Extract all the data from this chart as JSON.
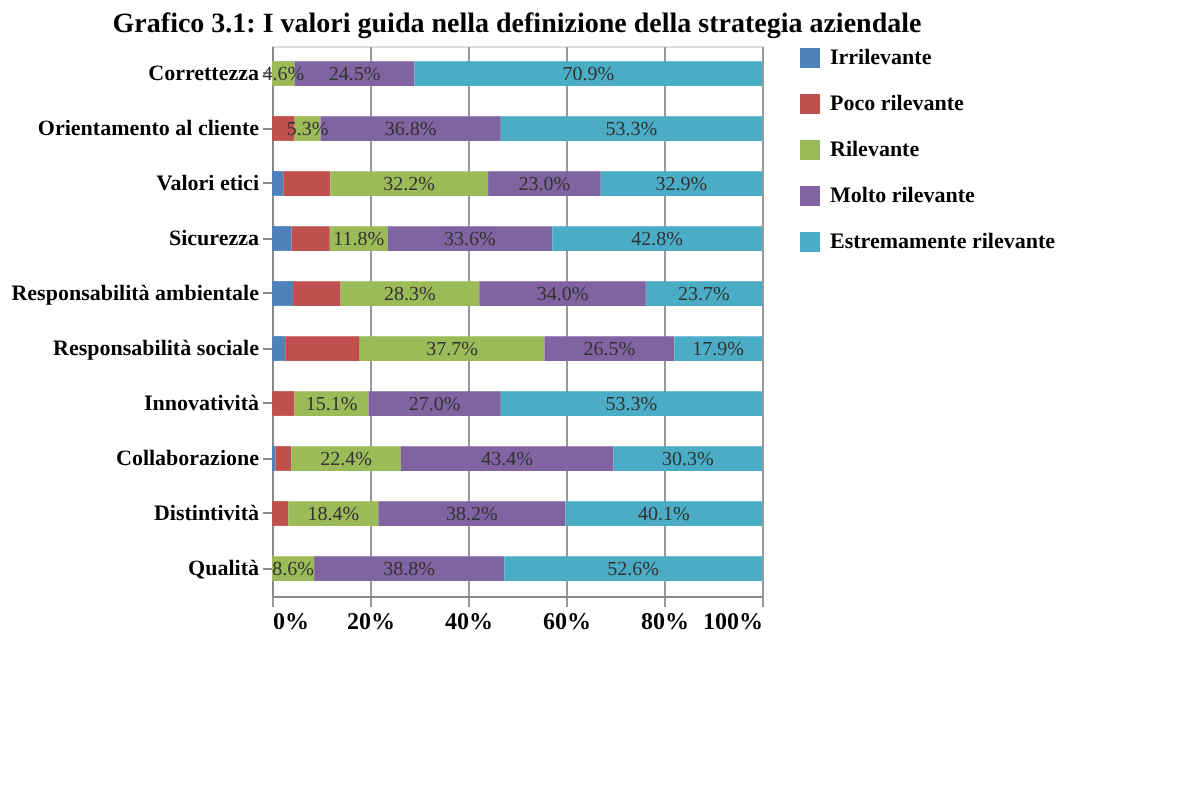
{
  "chart_data": {
    "type": "bar",
    "orientation": "horizontal",
    "stacked": true,
    "title": "Grafico 3.1: I valori guida nella definizione della strategia aziendale",
    "categories": [
      "Correttezza",
      "Orientamento al cliente",
      "Valori etici",
      "Sicurezza",
      "Responsabilità ambientale",
      "Responsabilità sociale",
      "Innovatività",
      "Collaborazione",
      "Distintività",
      "Qualità"
    ],
    "series": [
      {
        "name": "Irrilevante",
        "color": "#4f81bd",
        "values": [
          0,
          0,
          2.3,
          4.0,
          4.3,
          2.7,
          0,
          0.7,
          0,
          0
        ],
        "value_labels": [
          null,
          null,
          null,
          null,
          null,
          null,
          null,
          null,
          null,
          null
        ]
      },
      {
        "name": "Poco rilevante",
        "color": "#c0504d",
        "values": [
          0,
          4.6,
          9.6,
          7.8,
          9.7,
          15.2,
          4.6,
          3.2,
          3.3,
          0
        ],
        "value_labels": [
          null,
          null,
          null,
          null,
          null,
          null,
          null,
          null,
          null,
          null
        ]
      },
      {
        "name": "Rilevante",
        "color": "#9bbb59",
        "values": [
          4.6,
          5.3,
          32.2,
          11.8,
          28.3,
          37.7,
          15.1,
          22.4,
          18.4,
          8.6
        ],
        "value_labels": [
          "4.6%",
          "5.3%",
          "32.2%",
          "11.8%",
          "28.3%",
          "37.7%",
          "15.1%",
          "22.4%",
          "18.4%",
          "8.6%"
        ]
      },
      {
        "name": "Molto rilevante",
        "color": "#8064a2",
        "values": [
          24.5,
          36.8,
          23.0,
          33.6,
          34.0,
          26.5,
          27.0,
          43.4,
          38.2,
          38.8
        ],
        "value_labels": [
          "24.5%",
          "36.8%",
          "23.0%",
          "33.6%",
          "34.0%",
          "26.5%",
          "27.0%",
          "43.4%",
          "38.2%",
          "38.8%"
        ]
      },
      {
        "name": "Estremamente rilevante",
        "color": "#4bacc6",
        "values": [
          70.9,
          53.3,
          32.9,
          42.8,
          23.7,
          17.9,
          53.3,
          30.3,
          40.1,
          52.6
        ],
        "value_labels": [
          "70.9%",
          "53.3%",
          "32.9%",
          "42.8%",
          "23.7%",
          "17.9%",
          "53.3%",
          "30.3%",
          "40.1%",
          "52.6%"
        ]
      }
    ],
    "xlim": [
      0,
      100
    ],
    "xticks": [
      {
        "value": 0,
        "label": "0%"
      },
      {
        "value": 20,
        "label": "20%"
      },
      {
        "value": 40,
        "label": "40%"
      },
      {
        "value": 60,
        "label": "60%"
      },
      {
        "value": 80,
        "label": "80%"
      },
      {
        "value": 100,
        "label": "100%"
      }
    ],
    "grid": "x",
    "legend": "right"
  }
}
